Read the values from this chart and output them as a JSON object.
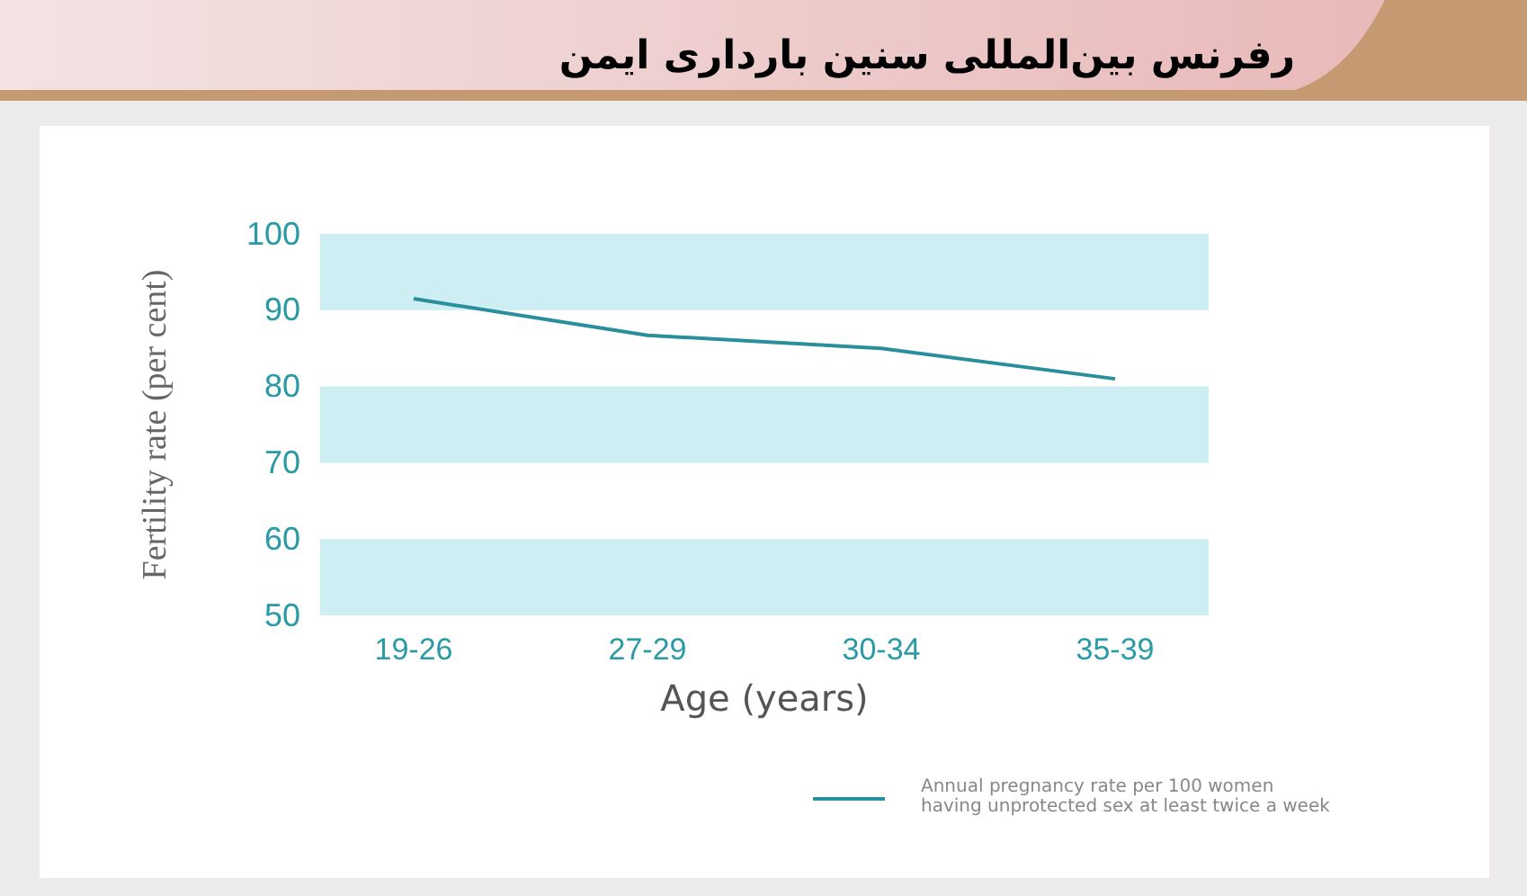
{
  "chart_data": {
    "type": "line",
    "title": "رفرنس بین‌المللی سنین بارداری ایمن",
    "xlabel": "Age (years)",
    "ylabel": "Fertility rate (per cent)",
    "categories": [
      "19-26",
      "27-29",
      "30-34",
      "35-39"
    ],
    "series": [
      {
        "name": "Annual pregnancy rate per 100 women having unprotected sex at least twice a week",
        "color": "#2a8f9c",
        "values": [
          91.5,
          86.7,
          85,
          81
        ]
      }
    ],
    "ylim": [
      50,
      100
    ],
    "yticks": [
      50,
      60,
      70,
      80,
      90,
      100
    ],
    "bands": [
      {
        "axis": "y",
        "from": 90,
        "to": 100,
        "color": "#cdeef3"
      },
      {
        "axis": "y",
        "from": 70,
        "to": 80,
        "color": "#cdeef3"
      },
      {
        "axis": "y",
        "from": 50,
        "to": 60,
        "color": "#cdeef3"
      }
    ],
    "grid": false,
    "legend": "bottom right",
    "marker": "none",
    "line_style": "solid"
  }
}
